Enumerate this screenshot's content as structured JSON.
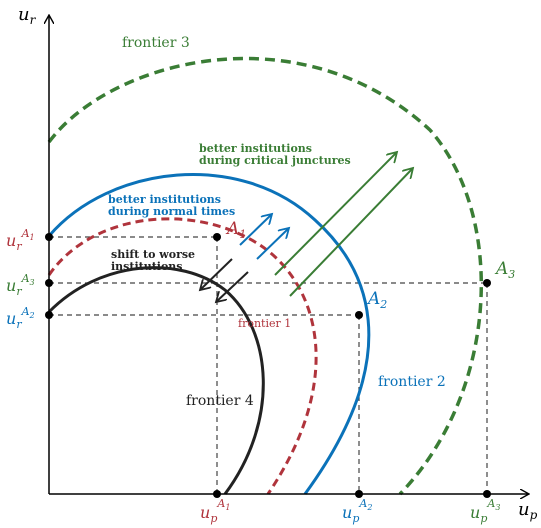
{
  "colors": {
    "frontier_1": "#b0343c",
    "frontier_2": "#0b72b9",
    "frontier_3": "#3a7d35",
    "frontier_4": "#222222",
    "axis": "#000000"
  },
  "axes": {
    "x_main": "u",
    "x_sub": "p",
    "y_main": "u",
    "y_sub": "r"
  },
  "frontiers": {
    "f1": "frontier 1",
    "f2": "frontier 2",
    "f3": "frontier 3",
    "f4": "frontier 4"
  },
  "points": {
    "a1": {
      "main": "A",
      "sub": "1"
    },
    "a2": {
      "main": "A",
      "sub": "2"
    },
    "a3": {
      "main": "A",
      "sub": "3"
    }
  },
  "annotations": {
    "critical_line1": "better institutions",
    "critical_line2": "during critical junctures",
    "normal_line1": "better institutions",
    "normal_line2": "during normal times",
    "worse_line1": "shift to worse",
    "worse_line2": "institutions"
  }
}
